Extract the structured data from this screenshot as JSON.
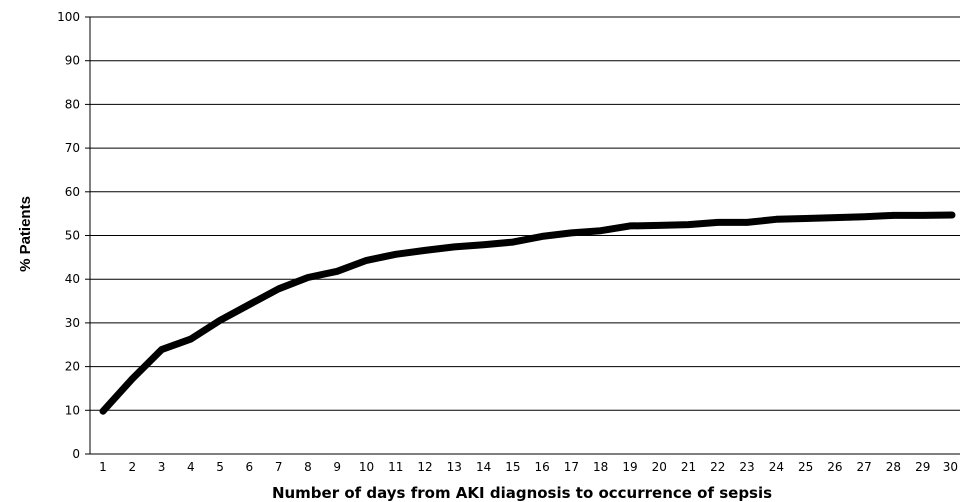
{
  "chart_data": {
    "type": "line",
    "title": "",
    "xlabel": "Number of days from AKI diagnosis to occurrence of sepsis",
    "ylabel": "% Patients",
    "ylim": [
      0,
      100
    ],
    "yticks": [
      0,
      10,
      20,
      30,
      40,
      50,
      60,
      70,
      80,
      90,
      100
    ],
    "grid": "horizontal",
    "x": [
      1,
      2,
      3,
      4,
      5,
      6,
      7,
      8,
      9,
      10,
      11,
      12,
      13,
      14,
      15,
      16,
      17,
      18,
      19,
      20,
      21,
      22,
      23,
      24,
      25,
      26,
      27,
      28,
      29,
      30
    ],
    "series": [
      {
        "color": "#000000",
        "values": [
          9.8,
          17.2,
          23.9,
          26.3,
          30.6,
          34.2,
          37.8,
          40.4,
          41.8,
          44.3,
          45.7,
          46.6,
          47.4,
          47.9,
          48.5,
          49.8,
          50.6,
          51.1,
          52.2,
          52.3,
          52.5,
          53.0,
          53.0,
          53.7,
          53.9,
          54.1,
          54.3,
          54.6,
          54.6,
          54.7
        ]
      }
    ]
  }
}
